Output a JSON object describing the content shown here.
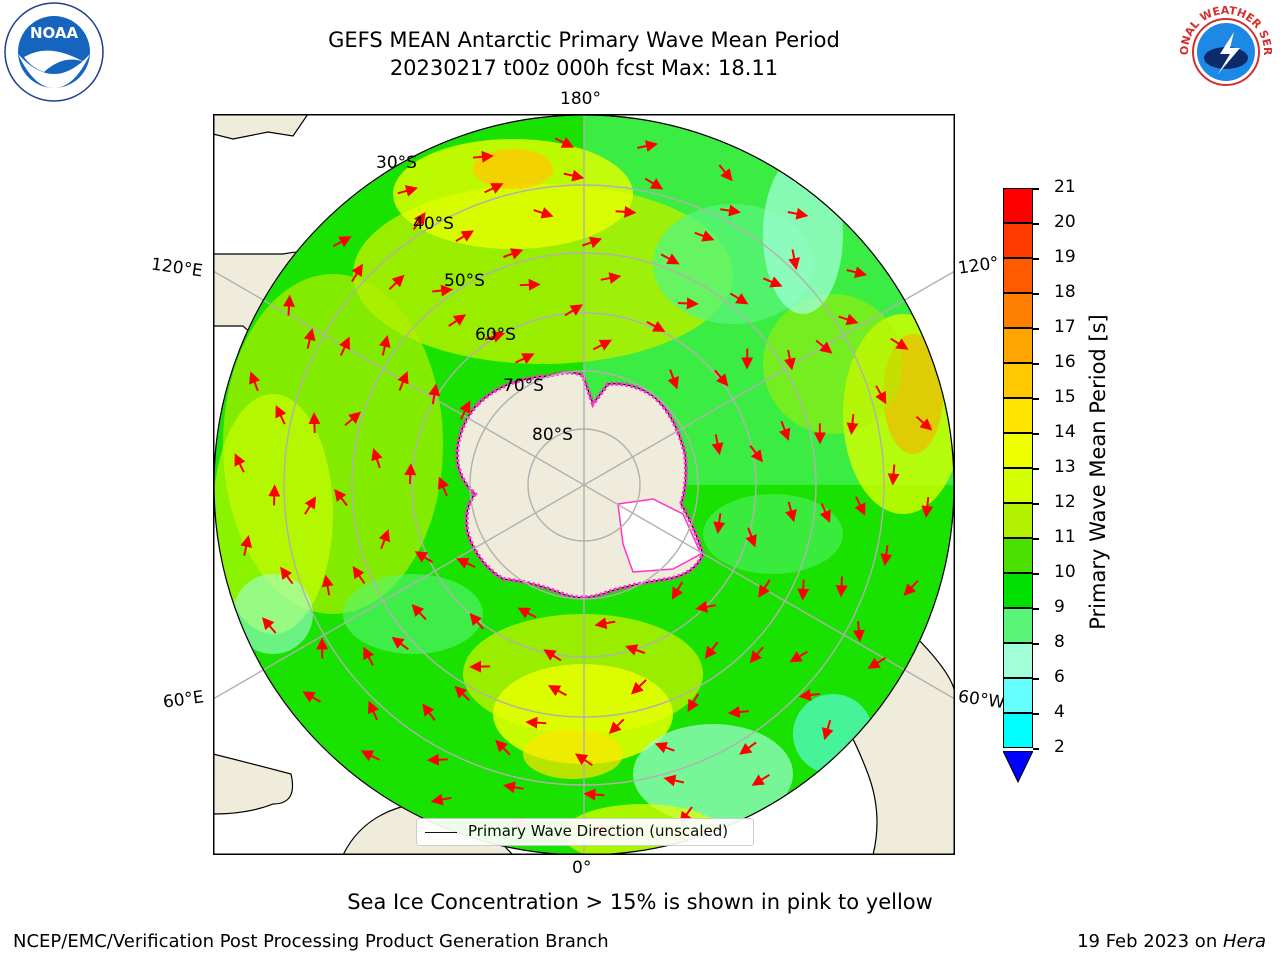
{
  "title": {
    "line1": "GEFS MEAN Antarctic Primary Wave Mean Period",
    "line2": "20230217 t00z 000h fcst   Max: 18.11"
  },
  "logos": {
    "noaa_text": "NOAA",
    "nws_text": "NATIONAL WEATHER SERVICE"
  },
  "map": {
    "longitude_labels": {
      "top": "180°",
      "bottom": "0°",
      "upper_left": "120°E",
      "upper_right": "120°",
      "lower_left": "60°E",
      "lower_right": "60°W"
    },
    "latitude_labels": [
      "30°S",
      "40°S",
      "50°S",
      "60°S",
      "70°S",
      "80°S"
    ],
    "legend": "Primary Wave Direction (unscaled)"
  },
  "colorbar": {
    "label": "Primary Wave Mean Period [s]",
    "ticks": [
      "21",
      "20",
      "19",
      "18",
      "17",
      "16",
      "15",
      "14",
      "13",
      "12",
      "11",
      "10",
      "9",
      "8",
      "6",
      "4",
      "2"
    ],
    "colors": [
      "#ff0000",
      "#ff3a00",
      "#ff5a00",
      "#ff8000",
      "#ffa500",
      "#ffc800",
      "#ffe600",
      "#f0ff00",
      "#d4ff00",
      "#b0f000",
      "#4ce000",
      "#00e000",
      "#58f578",
      "#a0ffd8",
      "#66ffff",
      "#00ffff",
      "#00d8ff",
      "#0077ff",
      "#0000ff"
    ]
  },
  "caption": "Sea Ice Concentration > 15% is shown in pink to yellow",
  "footer": {
    "left": "NCEP/EMC/Verification Post Processing Product Generation Branch",
    "right_date": "19 Feb 2023 on ",
    "right_host": "Hera"
  }
}
